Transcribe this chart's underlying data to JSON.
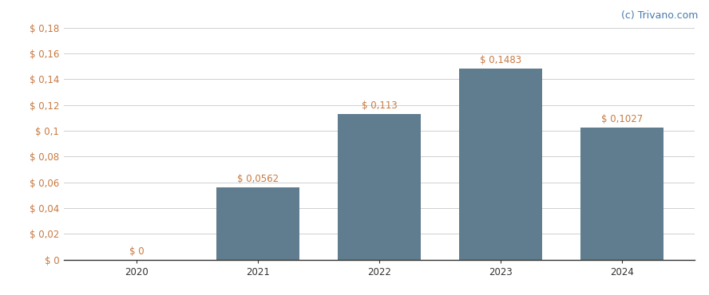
{
  "categories": [
    "2020",
    "2021",
    "2022",
    "2023",
    "2024"
  ],
  "values": [
    0.0,
    0.0562,
    0.113,
    0.1483,
    0.1027
  ],
  "bar_labels": [
    "$ 0",
    "$ 0,0562",
    "$ 0,113",
    "$ 0,1483",
    "$ 0,1027"
  ],
  "bar_color": "#5f7d8e",
  "background_color": "#ffffff",
  "grid_color": "#d0d0d0",
  "ylim": [
    0,
    0.19
  ],
  "yticks": [
    0,
    0.02,
    0.04,
    0.06,
    0.08,
    0.1,
    0.12,
    0.14,
    0.16,
    0.18
  ],
  "ytick_labels": [
    "$ 0",
    "$ 0,02",
    "$ 0,04",
    "$ 0,06",
    "$ 0,08",
    "$ 0,1",
    "$ 0,12",
    "$ 0,14",
    "$ 0,16",
    "$ 0,18"
  ],
  "watermark": "(c) Trivano.com",
  "label_color": "#c87941",
  "tick_color": "#c87941",
  "label_fontsize": 8.5,
  "tick_fontsize": 8.5,
  "watermark_fontsize": 9,
  "watermark_color": "#4a7aad",
  "bar_width": 0.68,
  "x_positions": [
    0,
    1,
    2,
    3,
    4
  ]
}
